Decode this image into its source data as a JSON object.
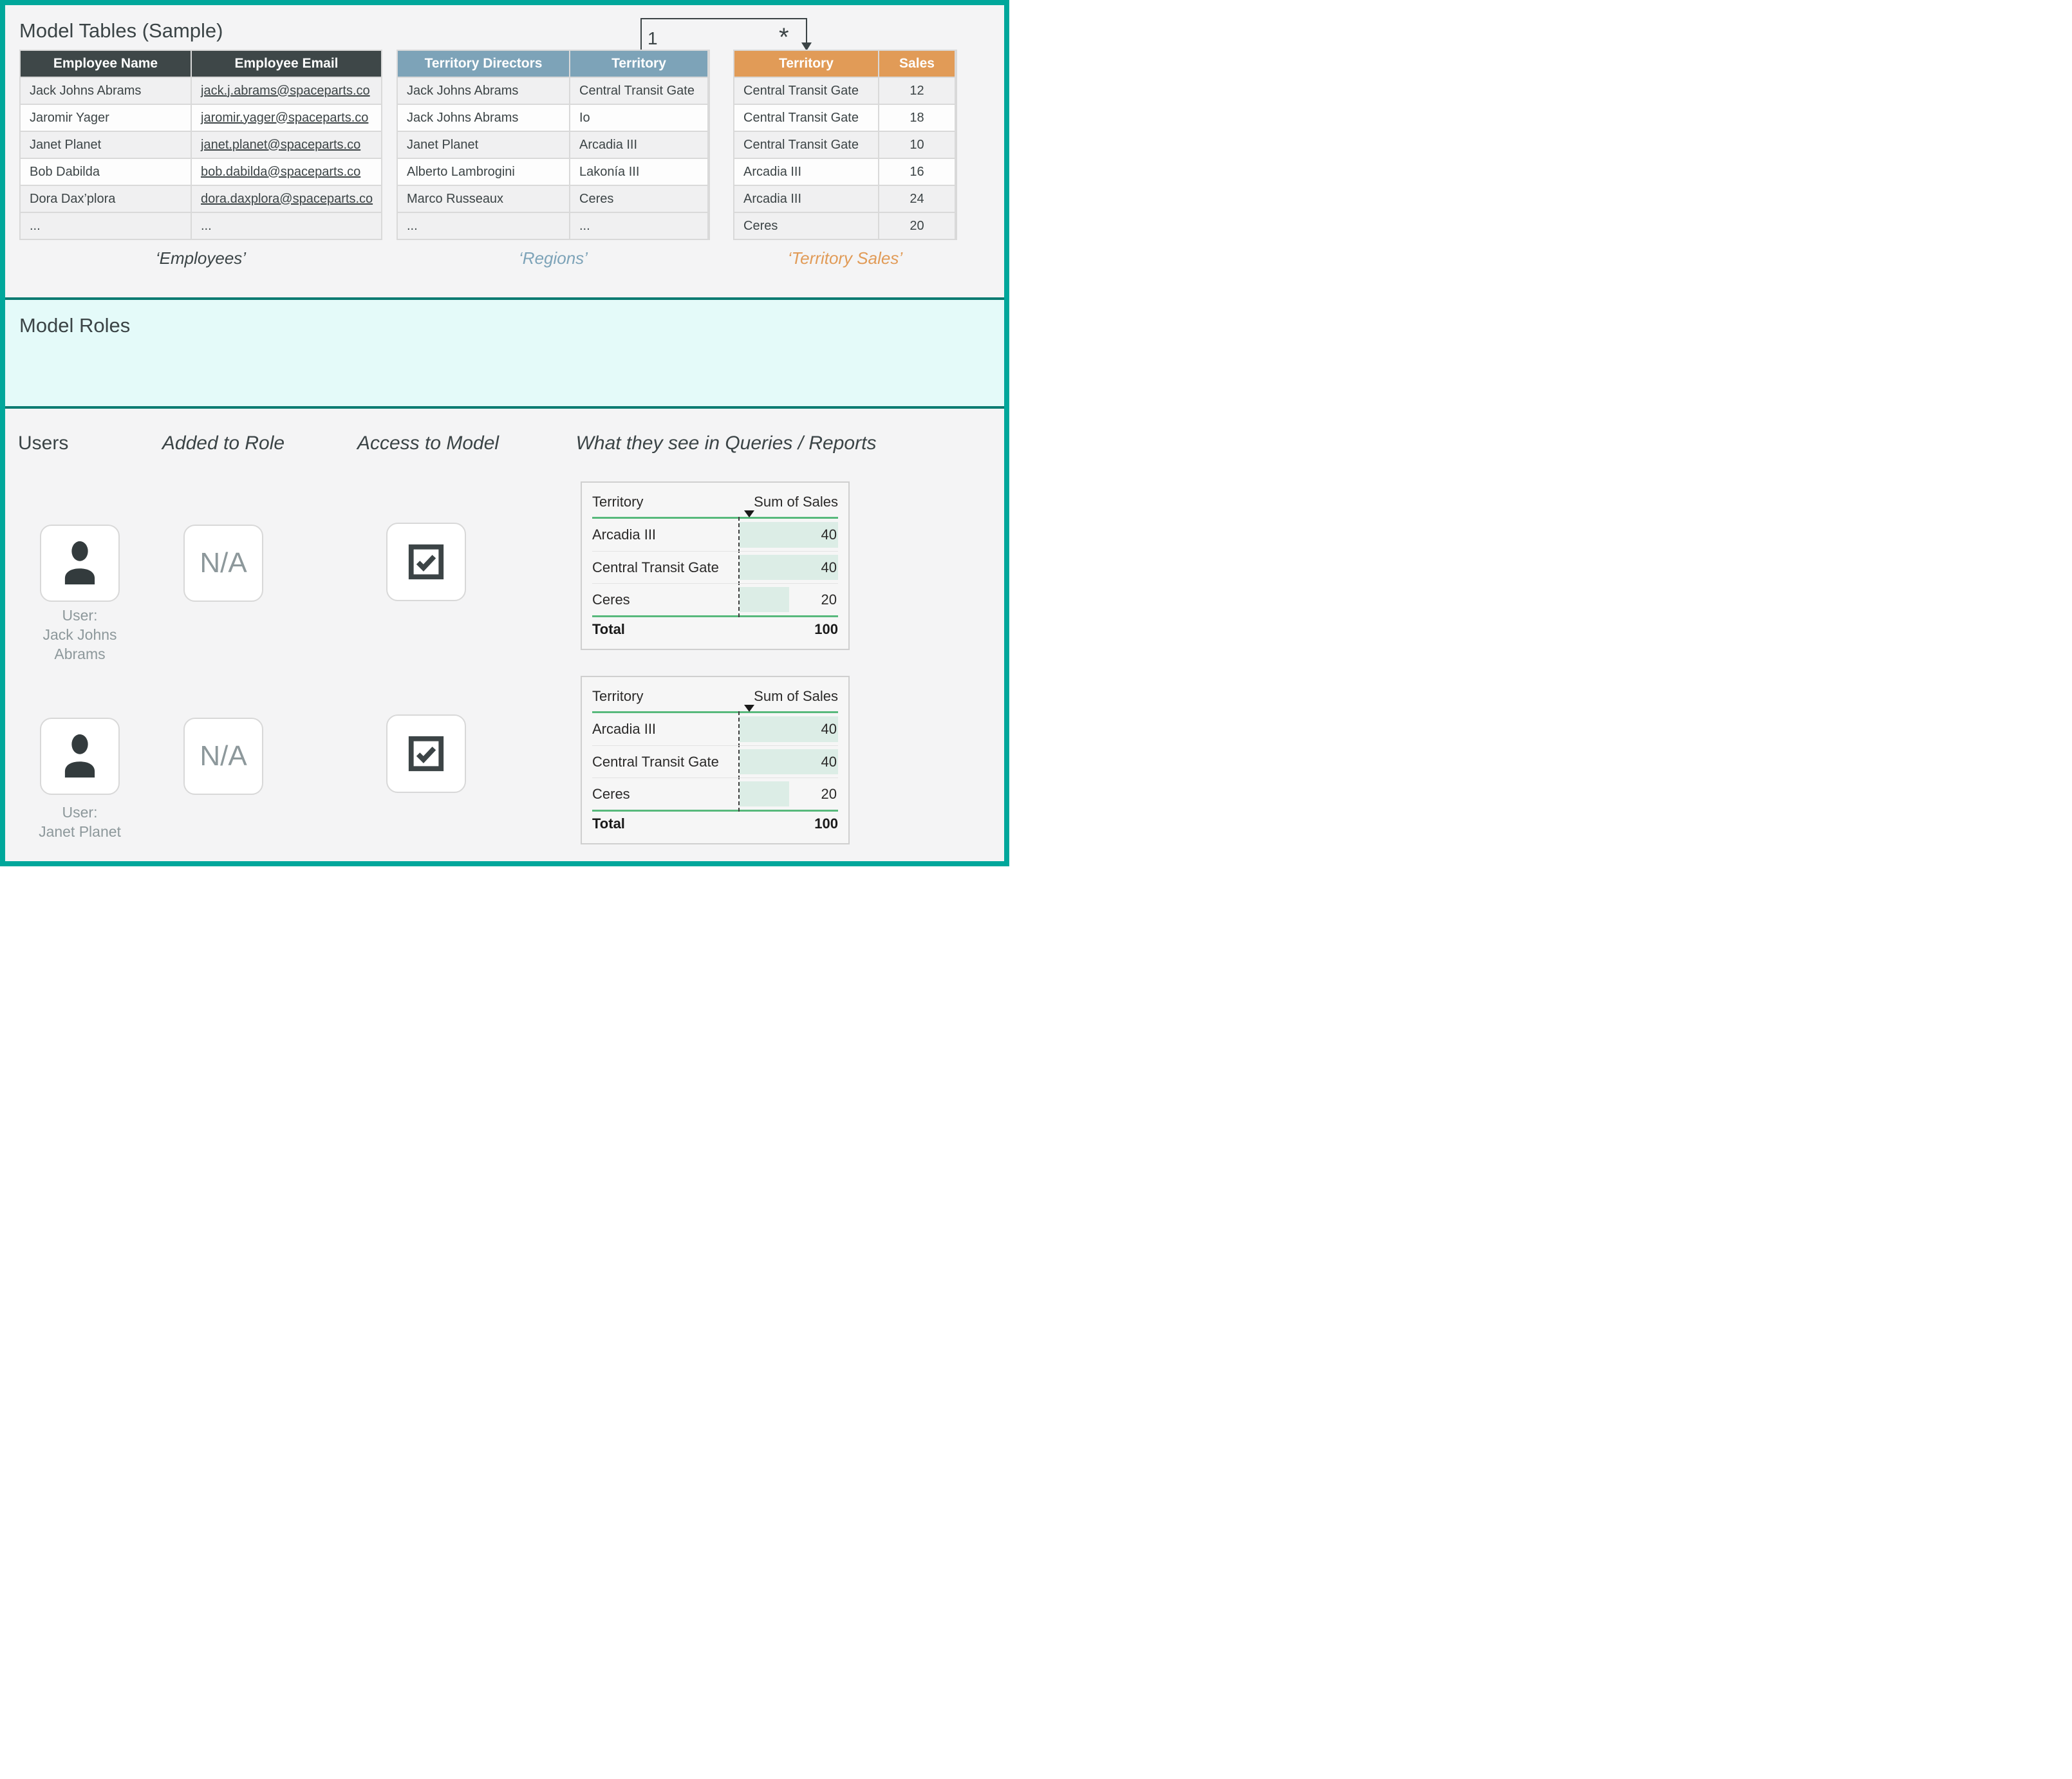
{
  "model_tables": {
    "title": "Model Tables (Sample)",
    "employees": {
      "caption": "‘Employees’",
      "headers": [
        "Employee Name",
        "Employee Email"
      ],
      "rows": [
        [
          "Jack Johns Abrams",
          "jack.j.abrams@spaceparts.co"
        ],
        [
          "Jaromir Yager",
          "jaromir.yager@spaceparts.co"
        ],
        [
          "Janet Planet",
          "janet.planet@spaceparts.co"
        ],
        [
          "Bob Dabilda",
          "bob.dabilda@spaceparts.co"
        ],
        [
          "Dora Dax’plora",
          "dora.daxplora@spaceparts.co"
        ],
        [
          "...",
          "..."
        ]
      ]
    },
    "regions": {
      "caption": "‘Regions’",
      "headers": [
        "Territory Directors",
        "Territory"
      ],
      "rows": [
        [
          "Jack Johns Abrams",
          "Central Transit Gate"
        ],
        [
          "Jack Johns Abrams",
          "Io"
        ],
        [
          "Janet Planet",
          "Arcadia III"
        ],
        [
          "Alberto Lambrogini",
          "Lakonía III"
        ],
        [
          "Marco Russeaux",
          "Ceres"
        ],
        [
          "...",
          "..."
        ]
      ]
    },
    "territory_sales": {
      "caption": "‘Territory Sales’",
      "headers": [
        "Territory",
        "Sales"
      ],
      "rows": [
        [
          "Central Transit Gate",
          "12"
        ],
        [
          "Central Transit Gate",
          "18"
        ],
        [
          "Central Transit Gate",
          "10"
        ],
        [
          "Arcadia III",
          "16"
        ],
        [
          "Arcadia III",
          "24"
        ],
        [
          "Ceres",
          "20"
        ]
      ]
    },
    "relationship": {
      "one_label": "1",
      "many_label": "*"
    }
  },
  "model_roles": {
    "title": "Model Roles"
  },
  "access": {
    "headers": {
      "users": "Users",
      "added": "Added to Role",
      "access": "Access to Model",
      "reports": "What they see in Queries / Reports"
    },
    "users": [
      {
        "label_lines": [
          "User:",
          "Jack Johns",
          "Abrams"
        ],
        "added_to_role": "N/A"
      },
      {
        "label_lines": [
          "User:",
          "Janet Planet"
        ],
        "added_to_role": "N/A"
      }
    ]
  },
  "report": {
    "col_territory": "Territory",
    "col_sales": "Sum of Sales",
    "rows": [
      {
        "territory": "Arcadia III",
        "value": "40",
        "bar_pct": 100
      },
      {
        "territory": "Central Transit Gate",
        "value": "40",
        "bar_pct": 100
      },
      {
        "territory": "Ceres",
        "value": "20",
        "bar_pct": 50
      }
    ],
    "total_label": "Total",
    "total_value": "100"
  },
  "colors": {
    "page_border_teal": "#00a79b",
    "divider_teal": "#0b7b72",
    "roles_background": "#e4faf9",
    "dark_header": "#3e4748",
    "blue_header": "#7da3b8",
    "orange_header": "#e19b57",
    "link_blue": "#7aa0b6",
    "report_green": "#58b97c",
    "report_bar_mint": "#dcede6"
  }
}
